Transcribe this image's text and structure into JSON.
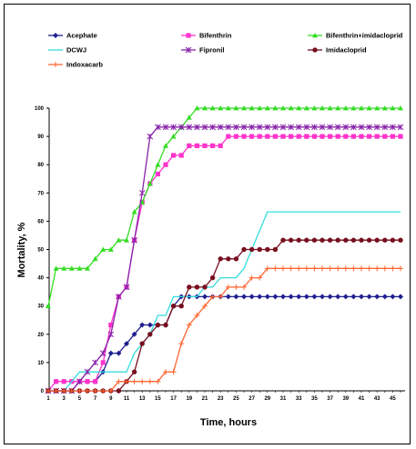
{
  "chart_data": {
    "type": "line",
    "xlabel": "Time, hours",
    "ylabel": "Mortality, %",
    "xlim": [
      1,
      47
    ],
    "ylim": [
      0,
      100
    ],
    "x_ticks": [
      1,
      3,
      5,
      7,
      9,
      11,
      13,
      15,
      17,
      19,
      21,
      23,
      25,
      27,
      29,
      31,
      33,
      35,
      37,
      39,
      41,
      43,
      45
    ],
    "y_ticks": [
      0,
      10,
      20,
      30,
      40,
      50,
      60,
      70,
      80,
      90,
      100
    ],
    "grid": false,
    "legend_position": "top",
    "x": [
      1,
      2,
      3,
      4,
      5,
      6,
      7,
      8,
      9,
      10,
      11,
      12,
      13,
      14,
      15,
      16,
      17,
      18,
      19,
      20,
      21,
      22,
      23,
      24,
      25,
      26,
      27,
      28,
      29,
      30,
      31,
      32,
      33,
      34,
      35,
      36,
      37,
      38,
      39,
      40,
      41,
      42,
      43,
      44,
      45,
      46
    ],
    "series": [
      {
        "name": "Acephate",
        "color": "#1f1f8f",
        "marker": "diamond",
        "values": [
          0,
          0,
          0,
          0,
          3.3,
          3.3,
          3.3,
          6.7,
          13.3,
          13.3,
          16.7,
          20,
          23.3,
          23.3,
          23.3,
          23.3,
          30,
          33.3,
          33.3,
          33.3,
          33.3,
          33.3,
          33.3,
          33.3,
          33.3,
          33.3,
          33.3,
          33.3,
          33.3,
          33.3,
          33.3,
          33.3,
          33.3,
          33.3,
          33.3,
          33.3,
          33.3,
          33.3,
          33.3,
          33.3,
          33.3,
          33.3,
          33.3,
          33.3,
          33.3,
          33.3
        ]
      },
      {
        "name": "Bifenthrin",
        "color": "#ff33cc",
        "marker": "square",
        "values": [
          0,
          3.3,
          3.3,
          3.3,
          3.3,
          3.3,
          3.3,
          10,
          23.3,
          33.3,
          36.7,
          53.3,
          66.7,
          73.3,
          76.7,
          80,
          83.3,
          83.3,
          86.7,
          86.7,
          86.7,
          86.7,
          86.7,
          90,
          90,
          90,
          90,
          90,
          90,
          90,
          90,
          90,
          90,
          90,
          90,
          90,
          90,
          90,
          90,
          90,
          90,
          90,
          90,
          90,
          90,
          90
        ]
      },
      {
        "name": "Bifenthrin+imidacloprid",
        "color": "#33dd22",
        "marker": "triangle",
        "values": [
          30,
          43.3,
          43.3,
          43.3,
          43.3,
          43.3,
          46.7,
          50,
          50,
          53.3,
          53.3,
          63.3,
          66.7,
          73.3,
          80,
          86.7,
          90,
          93.3,
          96.7,
          100,
          100,
          100,
          100,
          100,
          100,
          100,
          100,
          100,
          100,
          100,
          100,
          100,
          100,
          100,
          100,
          100,
          100,
          100,
          100,
          100,
          100,
          100,
          100,
          100,
          100,
          100
        ]
      },
      {
        "name": "DCWJ",
        "color": "#33dddd",
        "marker": "none",
        "values": [
          0,
          0,
          0,
          3.3,
          6.7,
          6.7,
          6.7,
          6.7,
          6.7,
          6.7,
          6.7,
          13.3,
          16.7,
          20,
          26.7,
          26.7,
          33.3,
          33.3,
          33.3,
          33.3,
          36.7,
          36.7,
          40,
          40,
          40,
          43.3,
          50,
          56.7,
          63.3,
          63.3,
          63.3,
          63.3,
          63.3,
          63.3,
          63.3,
          63.3,
          63.3,
          63.3,
          63.3,
          63.3,
          63.3,
          63.3,
          63.3,
          63.3,
          63.3,
          63.3
        ]
      },
      {
        "name": "Fipronil",
        "color": "#8822aa",
        "marker": "star",
        "values": [
          0,
          0,
          0,
          0,
          3.3,
          6.7,
          10,
          13.3,
          20,
          33.3,
          36.7,
          53.3,
          70,
          90,
          93.3,
          93.3,
          93.3,
          93.3,
          93.3,
          93.3,
          93.3,
          93.3,
          93.3,
          93.3,
          93.3,
          93.3,
          93.3,
          93.3,
          93.3,
          93.3,
          93.3,
          93.3,
          93.3,
          93.3,
          93.3,
          93.3,
          93.3,
          93.3,
          93.3,
          93.3,
          93.3,
          93.3,
          93.3,
          93.3,
          93.3,
          93.3
        ]
      },
      {
        "name": "Imidacloprid",
        "color": "#770f1f",
        "marker": "circle",
        "values": [
          0,
          0,
          0,
          0,
          0,
          0,
          0,
          0,
          0,
          0,
          3.3,
          6.7,
          16.7,
          20,
          23.3,
          23.3,
          30,
          30,
          36.7,
          36.7,
          36.7,
          40,
          46.7,
          46.7,
          46.7,
          50,
          50,
          50,
          50,
          50,
          53.3,
          53.3,
          53.3,
          53.3,
          53.3,
          53.3,
          53.3,
          53.3,
          53.3,
          53.3,
          53.3,
          53.3,
          53.3,
          53.3,
          53.3,
          53.3
        ]
      },
      {
        "name": "Indoxacarb",
        "color": "#ff6633",
        "marker": "plus",
        "values": [
          0,
          0,
          0,
          0,
          0,
          0,
          0,
          0,
          0,
          3.3,
          3.3,
          3.3,
          3.3,
          3.3,
          3.3,
          6.7,
          6.7,
          16.7,
          23.3,
          26.7,
          30,
          33.3,
          33.3,
          36.7,
          36.7,
          36.7,
          40,
          40,
          43.3,
          43.3,
          43.3,
          43.3,
          43.3,
          43.3,
          43.3,
          43.3,
          43.3,
          43.3,
          43.3,
          43.3,
          43.3,
          43.3,
          43.3,
          43.3,
          43.3,
          43.3
        ]
      }
    ]
  }
}
